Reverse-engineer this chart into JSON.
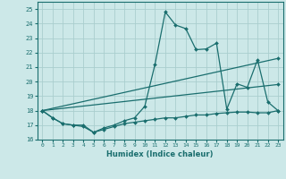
{
  "xlabel": "Humidex (Indice chaleur)",
  "xlim": [
    -0.5,
    23.5
  ],
  "ylim": [
    16,
    25.5
  ],
  "yticks": [
    16,
    17,
    18,
    19,
    20,
    21,
    22,
    23,
    24,
    25
  ],
  "xticks": [
    0,
    1,
    2,
    3,
    4,
    5,
    6,
    7,
    8,
    9,
    10,
    11,
    12,
    13,
    14,
    15,
    16,
    17,
    18,
    19,
    20,
    21,
    22,
    23
  ],
  "bg_color": "#cce8e8",
  "line_color": "#1a6e6e",
  "grid_color": "#aacece",
  "lines": [
    {
      "x": [
        0,
        1,
        2,
        3,
        4,
        5,
        6,
        7,
        8,
        9,
        10,
        11,
        12,
        13,
        14,
        15,
        16,
        17,
        18,
        19,
        20,
        21,
        22,
        23
      ],
      "y": [
        18.0,
        17.5,
        17.1,
        17.0,
        16.9,
        16.5,
        16.7,
        16.9,
        17.1,
        17.2,
        17.3,
        17.4,
        17.5,
        17.5,
        17.6,
        17.7,
        17.7,
        17.8,
        17.85,
        17.9,
        17.9,
        17.85,
        17.85,
        18.0
      ]
    },
    {
      "x": [
        0,
        1,
        2,
        3,
        4,
        5,
        6,
        7,
        8,
        9,
        10,
        11,
        12,
        13,
        14,
        15,
        16,
        17,
        18,
        19,
        20,
        21,
        22,
        23
      ],
      "y": [
        18.0,
        17.5,
        17.1,
        17.0,
        17.0,
        16.5,
        16.8,
        17.0,
        17.3,
        17.5,
        18.3,
        21.2,
        24.8,
        23.9,
        23.65,
        22.2,
        22.25,
        22.65,
        18.1,
        19.85,
        19.6,
        21.5,
        18.6,
        18.0
      ]
    },
    {
      "x": [
        0,
        23
      ],
      "y": [
        18.0,
        21.6
      ]
    },
    {
      "x": [
        0,
        23
      ],
      "y": [
        18.0,
        19.8
      ]
    }
  ]
}
